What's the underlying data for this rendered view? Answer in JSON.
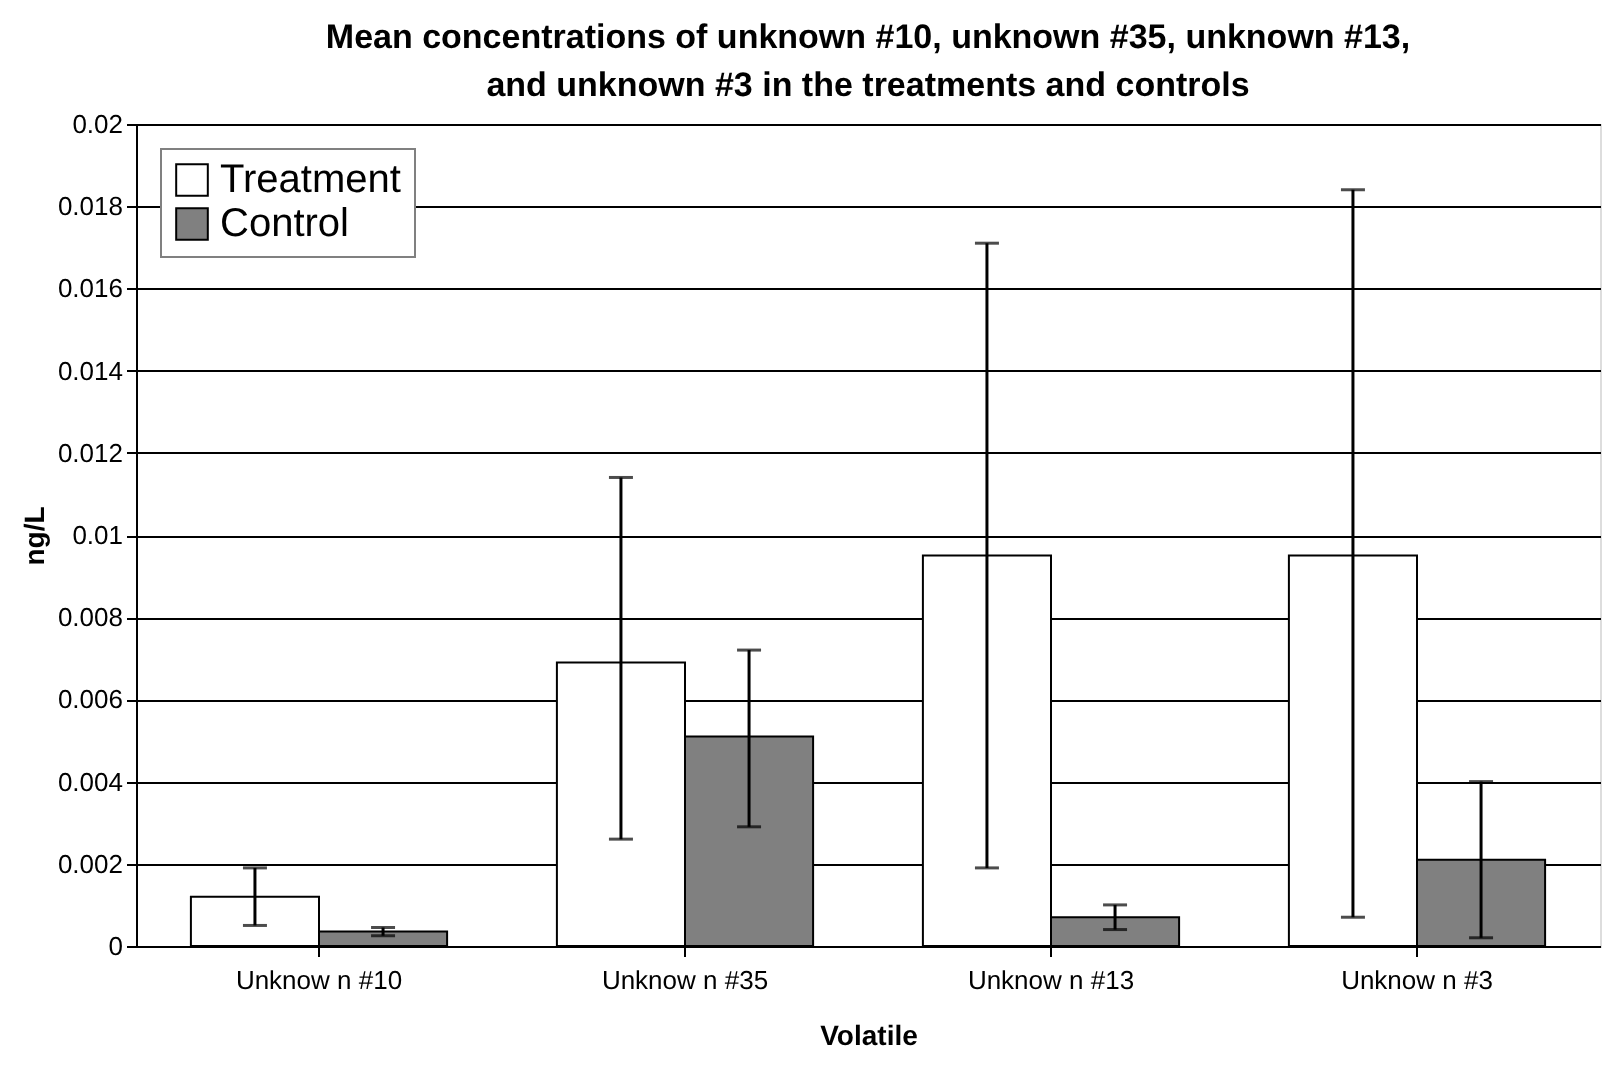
{
  "chart_data": {
    "type": "bar",
    "title": "Mean concentrations of unknown #10, unknown #35, unknown #13, and unknown #3 in the treatments and controls",
    "xlabel": "Volatile",
    "ylabel": "ng/L",
    "categories": [
      "Unknow n #10",
      "Unknow n #35",
      "Unknow n #13",
      "Unknow n #3"
    ],
    "series": [
      {
        "name": "Treatment",
        "color": "#ffffff",
        "values": [
          0.0012,
          0.0069,
          0.0095,
          0.0095
        ],
        "errors": [
          [
            0.0005,
            0.0019
          ],
          [
            0.0026,
            0.0114
          ],
          [
            0.0019,
            0.0171
          ],
          [
            0.0007,
            0.0184
          ]
        ]
      },
      {
        "name": "Control",
        "color": "#808080",
        "values": [
          0.00035,
          0.0051,
          0.0007,
          0.0021
        ],
        "errors": [
          [
            0.00025,
            0.00045
          ],
          [
            0.0029,
            0.0072
          ],
          [
            0.0004,
            0.001
          ],
          [
            0.0002,
            0.004
          ]
        ]
      }
    ],
    "ylim": [
      0,
      0.02
    ],
    "yticks": [
      0,
      0.002,
      0.004,
      0.006,
      0.008,
      0.01,
      0.012,
      0.014,
      0.016,
      0.018,
      0.02
    ],
    "grid": "y",
    "legend": "top left"
  }
}
